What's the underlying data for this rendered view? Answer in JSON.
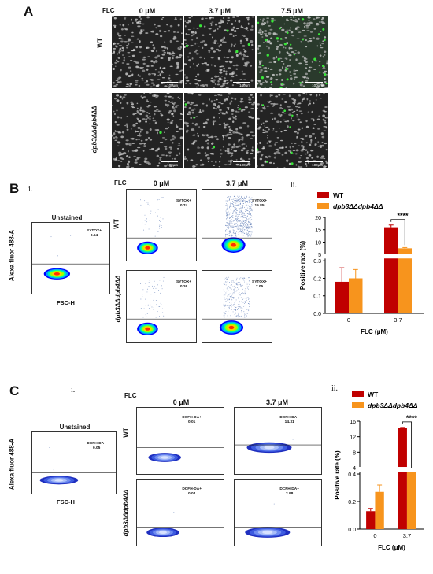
{
  "panelA": {
    "letter": "A",
    "flc_label": "FLC",
    "conc": [
      "0 μM",
      "3.7 μM",
      "7.5 μM"
    ],
    "rows": [
      "WT",
      "dpb3ΔΔdpb4ΔΔ"
    ],
    "scale": "100μm"
  },
  "panelB": {
    "letter": "B",
    "sub_i": "i.",
    "sub_ii": "ii.",
    "flc_label": "FLC",
    "conc": [
      "0 μM",
      "3.7 μM"
    ],
    "unstained_title": "Unstained",
    "rows": [
      "WT",
      "dpb3ΔΔdpb4ΔΔ"
    ],
    "y_axis": "Alexa fluor 488-A",
    "x_axis": "FSC-H",
    "gate_name": "SYTOX+",
    "gates": {
      "unstained": "0.64",
      "wt0": "0.74",
      "wt37": "15.85",
      "mut0": "0.26",
      "mut37": "7.05"
    },
    "x_ticks": [
      "0",
      "100K",
      "200K",
      "300K"
    ],
    "y_ticks": [
      "10⁵",
      "10⁴",
      "10³",
      "10²",
      "0",
      "-10²"
    ]
  },
  "panelC": {
    "letter": "C",
    "sub_i": "i.",
    "sub_ii": "ii.",
    "flc_label": "FLC",
    "conc": [
      "0 μM",
      "3.7 μM"
    ],
    "unstained_title": "Unstained",
    "rows": [
      "WT",
      "dpb3ΔΔdpb4ΔΔ"
    ],
    "y_axis": "Alexa fluor 488-A",
    "x_axis": "FSC-H",
    "gate_name": "DCFH-DA+",
    "gates": {
      "unstained": "0.05",
      "wt0": "0.01",
      "wt37": "14.31",
      "mut0": "0.04",
      "mut37": "2.98"
    },
    "x_ticks": [
      "0",
      "50K",
      "100K",
      "150K",
      "200K",
      "250K"
    ],
    "y_ticks": [
      "10⁵",
      "10⁴",
      "10³",
      "10²",
      "0",
      "-10²"
    ]
  },
  "chart_data": [
    {
      "type": "bar",
      "panel": "B.ii",
      "categories": [
        "0",
        "3.7"
      ],
      "series": [
        {
          "name": "WT",
          "color": "#c00000",
          "values": [
            0.18,
            16.0
          ],
          "errors": [
            0.08,
            0.9
          ]
        },
        {
          "name": "dpb3ΔΔdpb4ΔΔ",
          "color": "#f7941d",
          "values": [
            0.2,
            7.5
          ],
          "errors": [
            0.05,
            0.3
          ]
        }
      ],
      "xlabel": "FLC (μM)",
      "ylabel": "Positive rate (%)",
      "y_ticks": [
        "0.0",
        "0.1",
        "0.2",
        "0.3",
        "5",
        "10",
        "15",
        "20"
      ],
      "axis_break": true,
      "significance": "****"
    },
    {
      "type": "bar",
      "panel": "C.ii",
      "categories": [
        "0",
        "3.7"
      ],
      "series": [
        {
          "name": "WT",
          "color": "#c00000",
          "values": [
            0.13,
            14.3
          ],
          "errors": [
            0.02,
            0.1
          ]
        },
        {
          "name": "dpb3ΔΔdpb4ΔΔ",
          "color": "#f7941d",
          "values": [
            0.27,
            3.0
          ],
          "errors": [
            0.05,
            0.1
          ]
        }
      ],
      "xlabel": "FLC (μM)",
      "ylabel": "Positive rate (%)",
      "y_ticks": [
        "0.0",
        "0.2",
        "0.4",
        "4",
        "8",
        "12",
        "16"
      ],
      "axis_break": true,
      "significance": "****"
    }
  ]
}
